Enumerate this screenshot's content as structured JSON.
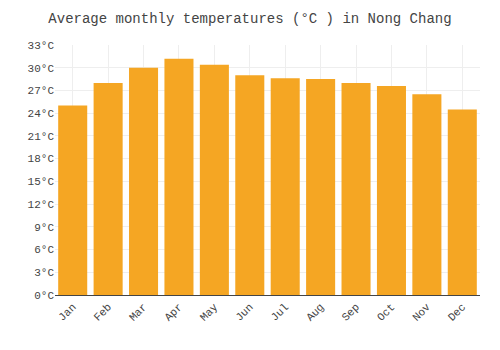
{
  "chart_data": {
    "type": "bar",
    "title": "Average monthly temperatures (°C ) in Nong Chang",
    "categories": [
      "Jan",
      "Feb",
      "Mar",
      "Apr",
      "May",
      "Jun",
      "Jul",
      "Aug",
      "Sep",
      "Oct",
      "Nov",
      "Dec"
    ],
    "values": [
      25.0,
      28.0,
      30.0,
      31.2,
      30.4,
      29.0,
      28.6,
      28.5,
      28.0,
      27.6,
      26.5,
      24.5
    ],
    "color": "#F5A623",
    "ylim": [
      0,
      33
    ],
    "yticks": [
      {
        "value": 0,
        "label": "0°C"
      },
      {
        "value": 3,
        "label": "3°C"
      },
      {
        "value": 6,
        "label": "6°C"
      },
      {
        "value": 9,
        "label": "9°C"
      },
      {
        "value": 12,
        "label": "12°C"
      },
      {
        "value": 15,
        "label": "15°C"
      },
      {
        "value": 18,
        "label": "18°C"
      },
      {
        "value": 21,
        "label": "21°C"
      },
      {
        "value": 24,
        "label": "24°C"
      },
      {
        "value": 27,
        "label": "27°C"
      },
      {
        "value": 30,
        "label": "30°C"
      },
      {
        "value": 33,
        "label": "33°C"
      }
    ],
    "grid": true
  }
}
